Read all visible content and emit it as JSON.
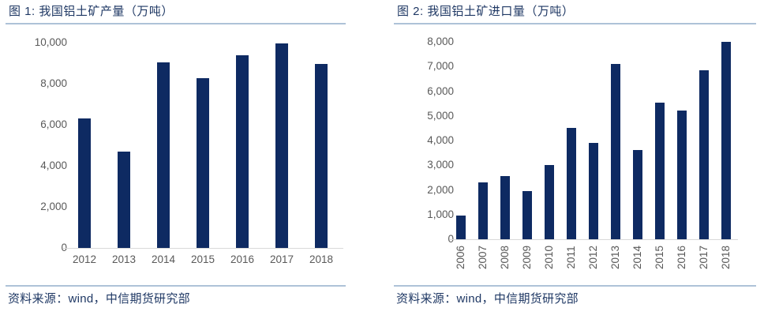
{
  "colors": {
    "bar": "#0E2A62",
    "title_text": "#1F3864",
    "source_text": "#1F3864",
    "axis_label": "#595959",
    "rule": "#AEC2D8",
    "baseline": "#D9D9D9",
    "background": "#FFFFFF"
  },
  "figure1": {
    "title": "图 1: 我国铝土矿产量（万吨）",
    "source": "资料来源：wind，中信期货研究部"
  },
  "figure2": {
    "title": "图 2: 我国铝土矿进口量（万吨）",
    "source": "资料来源：wind，中信期货研究部"
  },
  "chart_data": [
    {
      "type": "bar",
      "title": "图 1: 我国铝土矿产量（万吨）",
      "categories": [
        "2012",
        "2013",
        "2014",
        "2015",
        "2016",
        "2017",
        "2018"
      ],
      "values": [
        6300,
        4700,
        9050,
        8250,
        9400,
        9950,
        8950
      ],
      "xlabel": "",
      "ylabel": "",
      "ylim": [
        0,
        10000
      ],
      "y_ticks": [
        "0",
        "2,000",
        "4,000",
        "6,000",
        "8,000",
        "10,000"
      ],
      "grid": false,
      "legend": "none",
      "bar_color": "#0E2A62",
      "x_label_rotation": 0
    },
    {
      "type": "bar",
      "title": "图 2: 我国铝土矿进口量（万吨）",
      "categories": [
        "2006",
        "2007",
        "2008",
        "2009",
        "2010",
        "2011",
        "2012",
        "2013",
        "2014",
        "2015",
        "2016",
        "2017",
        "2018"
      ],
      "values": [
        950,
        2300,
        2550,
        1950,
        3000,
        4500,
        3900,
        7100,
        3600,
        5550,
        5200,
        6850,
        8000
      ],
      "xlabel": "",
      "ylabel": "",
      "ylim": [
        0,
        8000
      ],
      "y_ticks": [
        "0",
        "1,000",
        "2,000",
        "3,000",
        "4,000",
        "5,000",
        "6,000",
        "7,000",
        "8,000"
      ],
      "grid": false,
      "legend": "none",
      "bar_color": "#0E2A62",
      "x_label_rotation": -90
    }
  ]
}
